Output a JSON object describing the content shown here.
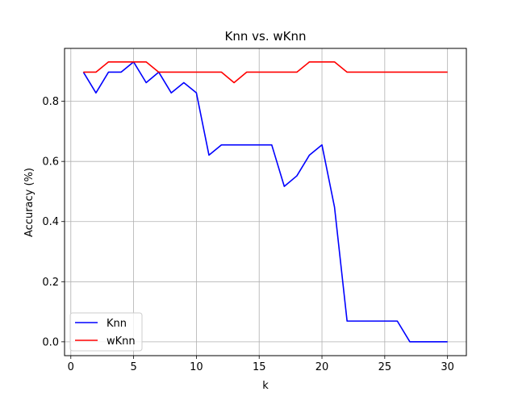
{
  "chart_data": {
    "type": "line",
    "title": "Knn vs. wKnn",
    "xlabel": "k",
    "ylabel": "Accuracy (%)",
    "xlim": [
      -0.5,
      31.5
    ],
    "ylim": [
      -0.046,
      0.976
    ],
    "xticks": [
      0,
      5,
      10,
      15,
      20,
      25,
      30
    ],
    "xtick_labels": [
      "0",
      "5",
      "10",
      "15",
      "20",
      "25",
      "30"
    ],
    "yticks": [
      0.0,
      0.2,
      0.4,
      0.6,
      0.8
    ],
    "ytick_labels": [
      "0.0",
      "0.2",
      "0.4",
      "0.6",
      "0.8"
    ],
    "grid": true,
    "legend_position": "lower-left",
    "x": [
      1,
      2,
      3,
      4,
      5,
      6,
      7,
      8,
      9,
      10,
      11,
      12,
      13,
      14,
      15,
      16,
      17,
      18,
      19,
      20,
      21,
      22,
      23,
      24,
      25,
      26,
      27,
      28,
      29,
      30
    ],
    "series": [
      {
        "name": "Knn",
        "color": "#0000ff",
        "values": [
          0.897,
          0.828,
          0.897,
          0.897,
          0.931,
          0.862,
          0.897,
          0.828,
          0.862,
          0.828,
          0.621,
          0.655,
          0.655,
          0.655,
          0.655,
          0.655,
          0.517,
          0.552,
          0.621,
          0.655,
          0.448,
          0.069,
          0.069,
          0.069,
          0.069,
          0.069,
          0.0,
          0.0,
          0.0,
          0.0
        ]
      },
      {
        "name": "wKnn",
        "color": "#ff0000",
        "values": [
          0.897,
          0.897,
          0.931,
          0.931,
          0.931,
          0.931,
          0.897,
          0.897,
          0.897,
          0.897,
          0.897,
          0.897,
          0.862,
          0.897,
          0.897,
          0.897,
          0.897,
          0.897,
          0.931,
          0.931,
          0.931,
          0.897,
          0.897,
          0.897,
          0.897,
          0.897,
          0.897,
          0.897,
          0.897,
          0.897
        ]
      }
    ]
  }
}
